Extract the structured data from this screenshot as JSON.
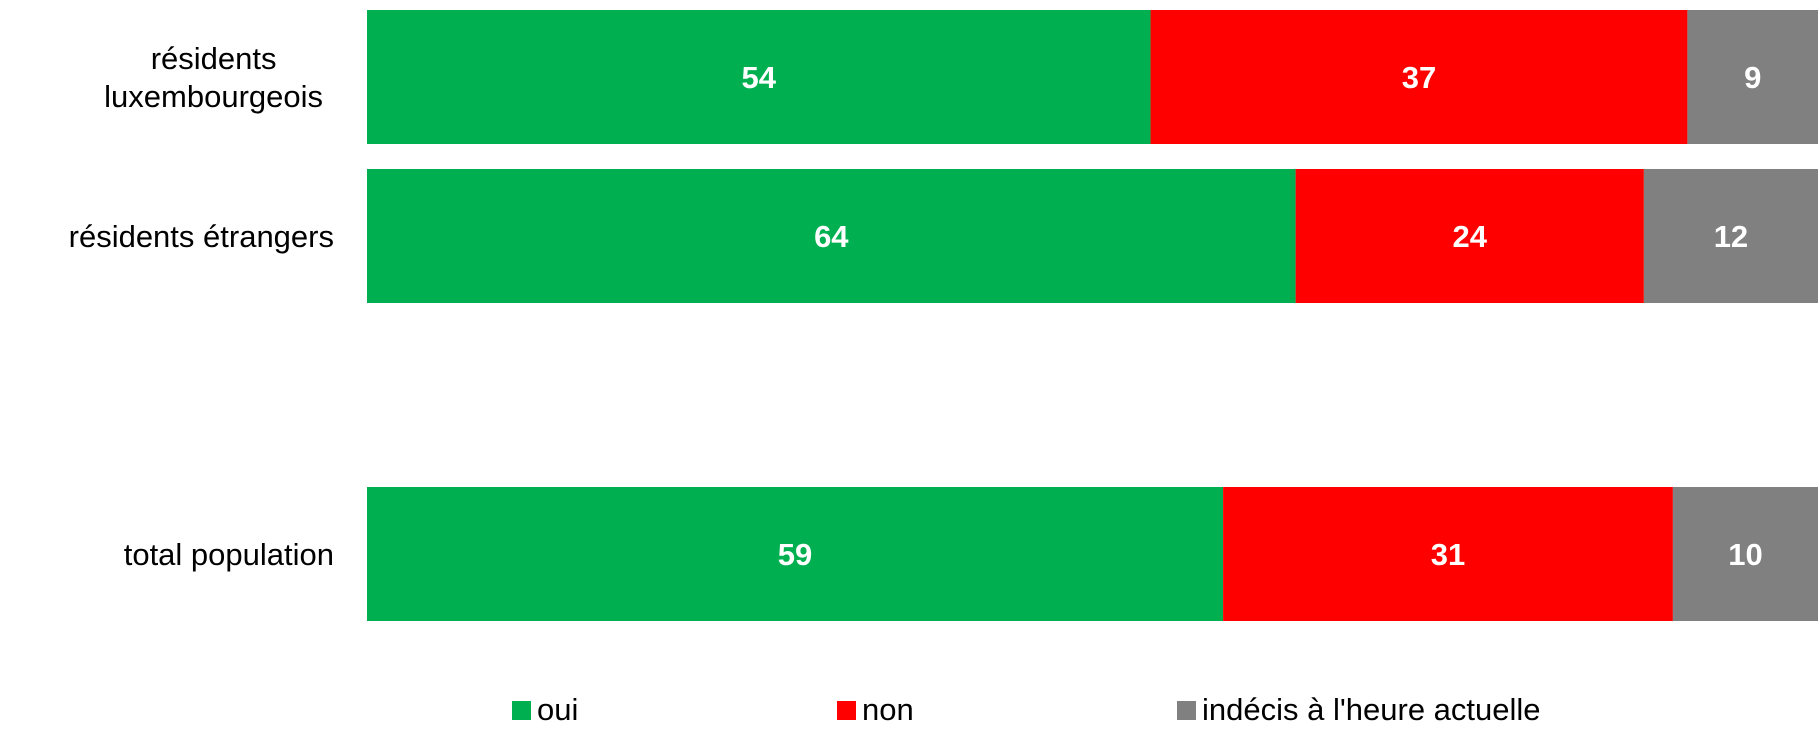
{
  "chart_data": {
    "type": "bar",
    "orientation": "horizontal",
    "stacked": true,
    "categories": [
      [
        "résidents",
        "luxembourgeois"
      ],
      [
        "résidents étrangers"
      ],
      [
        "total population"
      ]
    ],
    "series": [
      {
        "name": "oui",
        "color": "#00b050",
        "values": [
          54,
          64,
          59
        ]
      },
      {
        "name": "non",
        "color": "#ff0000",
        "values": [
          37,
          24,
          31
        ]
      },
      {
        "name": "indécis à l'heure actuelle",
        "color": "#808080",
        "values": [
          9,
          12,
          10
        ]
      }
    ],
    "xlim": [
      0,
      100
    ],
    "grid": false,
    "legend": "bottom",
    "data_labels": true
  }
}
